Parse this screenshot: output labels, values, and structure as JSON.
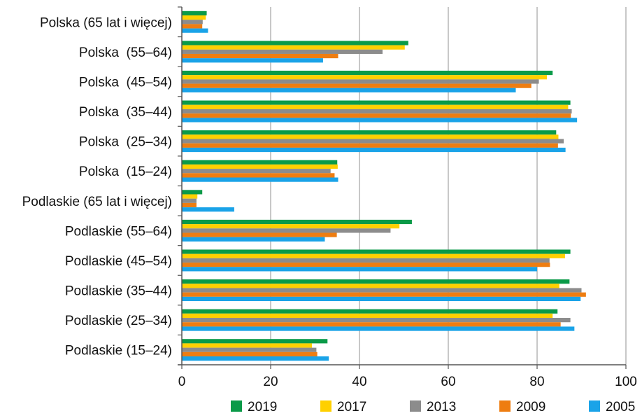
{
  "chart_data": {
    "type": "bar",
    "orientation": "horizontal",
    "categories": [
      "Polska (65 lat i więcej)",
      "Polska  (55–64)",
      "Polska  (45–54)",
      "Polska  (35–44)",
      "Polska  (25–34)",
      "Polska  (15–24)",
      "Podlaskie (65 lat i więcej)",
      "Podlaskie (55–64)",
      "Podlaskie (45–54)",
      "Podlaskie (35–44)",
      "Podlaskie (25–34)",
      "Podlaskie (15–24)"
    ],
    "series": [
      {
        "name": "2019",
        "color": "#0a9a48",
        "values": [
          5.6,
          51.0,
          83.5,
          87.5,
          84.3,
          35.0,
          4.6,
          51.8,
          87.5,
          87.3,
          84.6,
          32.8
        ]
      },
      {
        "name": "2017",
        "color": "#ffd000",
        "values": [
          5.4,
          50.2,
          82.2,
          87.0,
          84.8,
          35.1,
          3.5,
          49.0,
          86.3,
          85.0,
          83.5,
          29.3
        ]
      },
      {
        "name": "2013",
        "color": "#8c8c8c",
        "values": [
          4.7,
          45.2,
          80.4,
          87.8,
          86.0,
          33.5,
          3.3,
          47.0,
          82.8,
          90.0,
          87.5,
          30.3
        ]
      },
      {
        "name": "2009",
        "color": "#ee7d11",
        "values": [
          4.6,
          35.2,
          78.7,
          87.6,
          84.7,
          34.4,
          3.3,
          34.9,
          82.9,
          91.0,
          85.3,
          30.5
        ]
      },
      {
        "name": "2005",
        "color": "#1aa3e8",
        "values": [
          5.9,
          31.8,
          75.2,
          89.0,
          86.4,
          35.2,
          11.8,
          32.2,
          80.0,
          89.8,
          88.4,
          33.1
        ]
      }
    ],
    "legend_order": [
      "2019",
      "2017",
      "2013",
      "2009",
      "2005"
    ],
    "xlim": [
      0,
      100
    ],
    "xticks": [
      "0",
      "20",
      "40",
      "60",
      "80",
      "100"
    ],
    "grid": "vertical",
    "legend_position": "bottom",
    "title": "",
    "xlabel": "",
    "ylabel": ""
  }
}
